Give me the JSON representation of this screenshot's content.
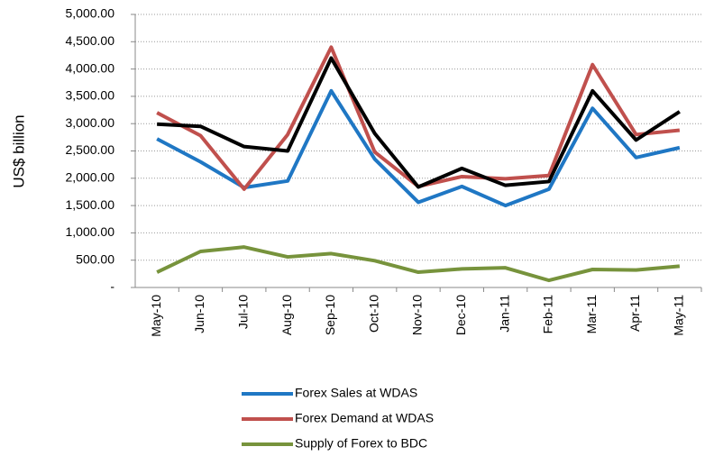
{
  "chart_data": {
    "type": "line",
    "y_label": "US$ billion",
    "categories": [
      "May-10",
      "Jun-10",
      "Jul-10",
      "Aug-10",
      "Sep-10",
      "Oct-10",
      "Nov-10",
      "Dec-10",
      "Jan-11",
      "Feb-11",
      "Mar-11",
      "Apr-11",
      "May-11"
    ],
    "series": [
      {
        "name": "Forex Sales at WDAS",
        "color": "#1f77c4",
        "values": [
          2720,
          2300,
          1830,
          1950,
          3600,
          2350,
          1560,
          1850,
          1500,
          1800,
          3280,
          2380,
          2560
        ]
      },
      {
        "name": "Forex Demand at WDAS",
        "color": "#c0504d",
        "values": [
          3200,
          2780,
          1800,
          2800,
          4400,
          2480,
          1850,
          2030,
          1990,
          2050,
          4080,
          2800,
          2880
        ]
      },
      {
        "color": "#000000",
        "values": [
          2990,
          2950,
          2580,
          2500,
          4200,
          2820,
          1840,
          2180,
          1870,
          1940,
          3600,
          2700,
          3220
        ]
      },
      {
        "name": "Supply of Forex to BDC",
        "color": "#77933c",
        "values": [
          280,
          660,
          740,
          560,
          620,
          490,
          280,
          340,
          360,
          130,
          330,
          320,
          390
        ]
      }
    ],
    "ylim": [
      0,
      5000
    ],
    "yticks": [
      {
        "value": 0,
        "label": "-"
      },
      {
        "value": 500,
        "label": "500.00"
      },
      {
        "value": 1000,
        "label": "1,000.00"
      },
      {
        "value": 1500,
        "label": "1,500.00"
      },
      {
        "value": 2000,
        "label": "2,000.00"
      },
      {
        "value": 2500,
        "label": "2,500.00"
      },
      {
        "value": 3000,
        "label": "3,000.00"
      },
      {
        "value": 3500,
        "label": "3,500.00"
      },
      {
        "value": 4000,
        "label": "4,000.00"
      },
      {
        "value": 4500,
        "label": "4,500.00"
      },
      {
        "value": 5000,
        "label": "5,000.00"
      }
    ],
    "grid": true,
    "legend": "bottom"
  }
}
